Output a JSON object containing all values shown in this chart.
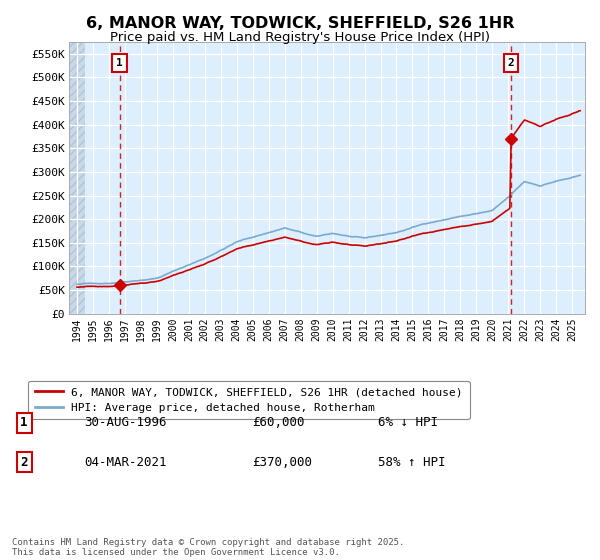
{
  "title": "6, MANOR WAY, TODWICK, SHEFFIELD, S26 1HR",
  "subtitle": "Price paid vs. HM Land Registry's House Price Index (HPI)",
  "ylim": [
    0,
    575000
  ],
  "xlim_start": 1993.5,
  "xlim_end": 2025.8,
  "yticks": [
    0,
    50000,
    100000,
    150000,
    200000,
    250000,
    300000,
    350000,
    400000,
    450000,
    500000,
    550000
  ],
  "ytick_labels": [
    "£0",
    "£50K",
    "£100K",
    "£150K",
    "£200K",
    "£250K",
    "£300K",
    "£350K",
    "£400K",
    "£450K",
    "£500K",
    "£550K"
  ],
  "xticks": [
    1994,
    1995,
    1996,
    1997,
    1998,
    1999,
    2000,
    2001,
    2002,
    2003,
    2004,
    2005,
    2006,
    2007,
    2008,
    2009,
    2010,
    2011,
    2012,
    2013,
    2014,
    2015,
    2016,
    2017,
    2018,
    2019,
    2020,
    2021,
    2022,
    2023,
    2024,
    2025
  ],
  "sale1_x": 1996.663,
  "sale1_y": 60000,
  "sale1_label": "1",
  "sale1_date": "30-AUG-1996",
  "sale1_price": "£60,000",
  "sale1_hpi": "6% ↓ HPI",
  "sale2_x": 2021.172,
  "sale2_y": 370000,
  "sale2_label": "2",
  "sale2_date": "04-MAR-2021",
  "sale2_price": "£370,000",
  "sale2_hpi": "58% ↑ HPI",
  "legend1_label": "6, MANOR WAY, TODWICK, SHEFFIELD, S26 1HR (detached house)",
  "legend2_label": "HPI: Average price, detached house, Rotherham",
  "footnote": "Contains HM Land Registry data © Crown copyright and database right 2025.\nThis data is licensed under the Open Government Licence v3.0.",
  "line_color_red": "#cc0000",
  "line_color_blue": "#7aabcf",
  "grid_color": "#cce0f0",
  "bg_main": "#ddeeff",
  "bg_hatch": "#c8d8e8",
  "vline_color": "#cc0000",
  "marker_color": "#cc0000",
  "label_box_color": "#cc0000",
  "hatch_xlim": 1994.5
}
